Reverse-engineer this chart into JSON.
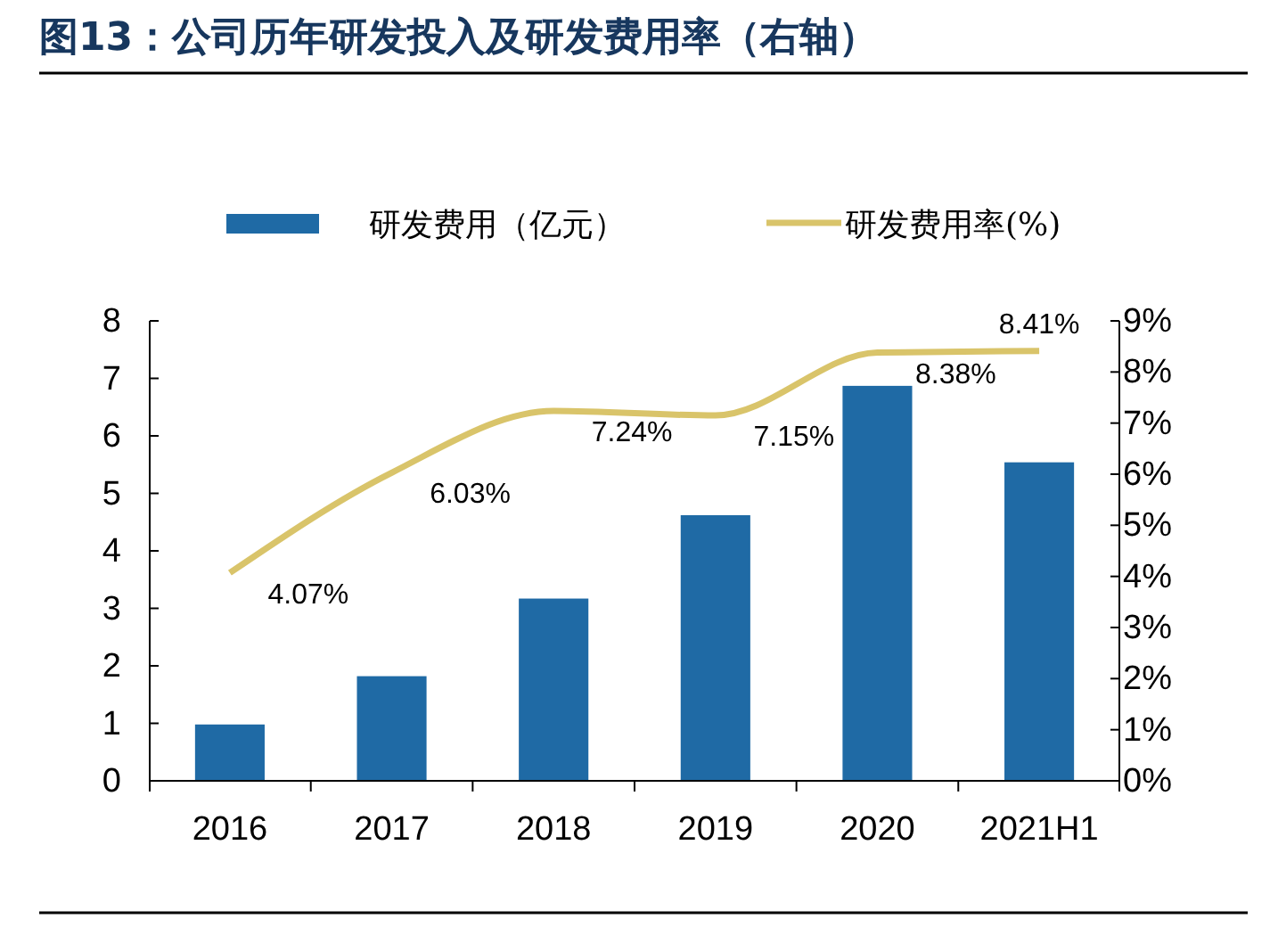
{
  "chart_data": {
    "type": "bar",
    "title": "图13：公司历年研发投入及研发费用率（右轴）",
    "categories": [
      "2016",
      "2017",
      "2018",
      "2019",
      "2020",
      "2021H1"
    ],
    "series": [
      {
        "name": "研发费用（亿元）",
        "color": "#1f6aa5",
        "values": [
          0.98,
          1.82,
          3.17,
          4.62,
          6.87,
          5.54
        ]
      },
      {
        "name": "研发费用率(%)",
        "type": "line",
        "axis": "y2",
        "color": "#d9c46a",
        "values": [
          4.07,
          6.03,
          7.24,
          7.15,
          8.38,
          8.41
        ],
        "value_labels": [
          "4.07%",
          "6.03%",
          "7.24%",
          "7.15%",
          "8.38%",
          "8.41%"
        ]
      }
    ],
    "ylim": [
      0,
      8
    ],
    "yticks": [
      0,
      1,
      2,
      3,
      4,
      5,
      6,
      7,
      8
    ],
    "y2lim": [
      0,
      9
    ],
    "y2ticks": [
      {
        "value": 0,
        "label": "0%"
      },
      {
        "value": 1,
        "label": "1%"
      },
      {
        "value": 2,
        "label": "2%"
      },
      {
        "value": 3,
        "label": "3%"
      },
      {
        "value": 4,
        "label": "4%"
      },
      {
        "value": 5,
        "label": "5%"
      },
      {
        "value": 6,
        "label": "6%"
      },
      {
        "value": 7,
        "label": "7%"
      },
      {
        "value": 8,
        "label": "8%"
      },
      {
        "value": 9,
        "label": "9%"
      }
    ],
    "grid": false,
    "legend": "top",
    "marker": "none",
    "line_style": "solid"
  }
}
